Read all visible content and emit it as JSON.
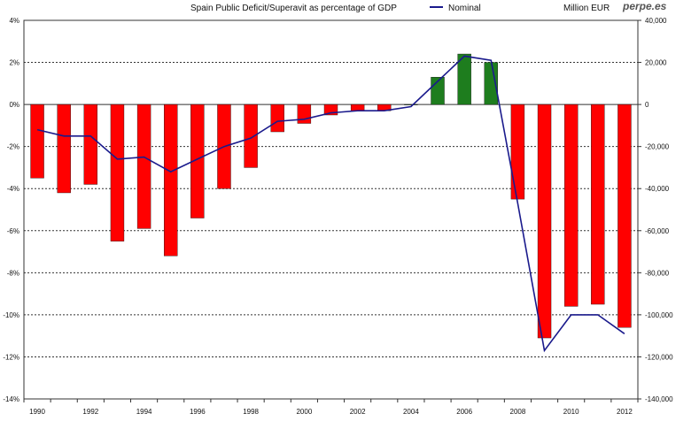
{
  "chart_data": {
    "type": "bar",
    "title": "Spain Public Deficit/Superavit as percentage of GDP",
    "brand": "perpe.es",
    "right_unit": "Million EUR",
    "categories": [
      "1990",
      "1991",
      "1992",
      "1993",
      "1994",
      "1995",
      "1996",
      "1997",
      "1998",
      "1999",
      "2000",
      "2001",
      "2002",
      "2003",
      "2004",
      "2005",
      "2006",
      "2007",
      "2008",
      "2009",
      "2010",
      "2011",
      "2012"
    ],
    "x_tick_labels": [
      "1990",
      "1992",
      "1994",
      "1996",
      "1998",
      "2000",
      "2002",
      "2004",
      "2006",
      "2008",
      "2010",
      "2012"
    ],
    "series": [
      {
        "name": "Deficit/Superavit % of GDP",
        "axis": "left",
        "type": "bar",
        "values": [
          -3.5,
          -4.2,
          -3.8,
          -6.5,
          -5.9,
          -7.2,
          -5.4,
          -4.0,
          -3.0,
          -1.3,
          -0.9,
          -0.5,
          -0.3,
          -0.3,
          0.0,
          1.3,
          2.4,
          2.0,
          -4.5,
          -11.1,
          -9.6,
          -9.5,
          -10.6
        ]
      },
      {
        "name": "Nominal",
        "axis": "right",
        "type": "line",
        "values": [
          -12000,
          -15000,
          -15000,
          -26000,
          -25000,
          -32000,
          -26000,
          -20000,
          -16000,
          -8000,
          -7000,
          -4000,
          -3000,
          -3000,
          -1000,
          11000,
          23000,
          21000,
          -47000,
          -117000,
          -100000,
          -100000,
          -109000
        ]
      }
    ],
    "ylim_left": [
      -14,
      4
    ],
    "ylim_right": [
      -140000,
      40000
    ],
    "y_ticks_left": [
      "4%",
      "2%",
      "0%",
      "-2%",
      "-4%",
      "-6%",
      "-8%",
      "-10%",
      "-12%",
      "-14%"
    ],
    "y_ticks_right": [
      "40,000",
      "20,000",
      "0",
      "-20,000",
      "-40,000",
      "-60,000",
      "-80,000",
      "-100,000",
      "-120,000",
      "-140,000"
    ],
    "legend": {
      "label": "Nominal",
      "position": "top"
    },
    "colors": {
      "negative": "#ff0000",
      "positive": "#1e7d1e",
      "line": "#1a1a8c",
      "grid": "#333333"
    },
    "grid": true
  }
}
